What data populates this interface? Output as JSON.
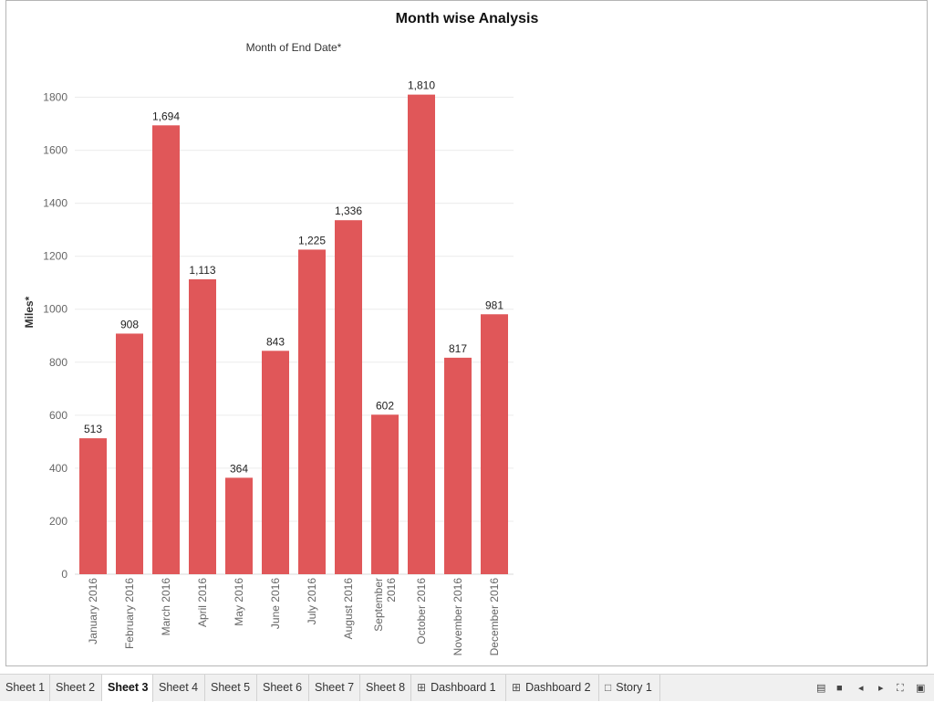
{
  "chart_data": {
    "type": "bar",
    "title": "Month wise Analysis",
    "column_header": "Month of End Date*",
    "ylabel": "Miles*",
    "ylim": [
      0,
      1950
    ],
    "yticks": [
      0,
      200,
      400,
      600,
      800,
      1000,
      1200,
      1400,
      1600,
      1800
    ],
    "grid": true,
    "bar_color": "#e05759",
    "categories": [
      "January 2016",
      "February 2016",
      "March 2016",
      "April 2016",
      "May 2016",
      "June 2016",
      "July 2016",
      "August 2016",
      "September 2016",
      "October 2016",
      "November 2016",
      "December 2016"
    ],
    "category_lines": [
      [
        "January 2016"
      ],
      [
        "February 2016"
      ],
      [
        "March 2016"
      ],
      [
        "April 2016"
      ],
      [
        "May 2016"
      ],
      [
        "June 2016"
      ],
      [
        "July 2016"
      ],
      [
        "August 2016"
      ],
      [
        "September",
        "2016"
      ],
      [
        "October 2016"
      ],
      [
        "November 2016"
      ],
      [
        "December 2016"
      ]
    ],
    "values": [
      513,
      908,
      1694,
      1113,
      364,
      843,
      1225,
      1336,
      602,
      1810,
      817,
      981
    ],
    "value_labels": [
      "513",
      "908",
      "1,694",
      "1,113",
      "364",
      "843",
      "1,225",
      "1,336",
      "602",
      "1,810",
      "817",
      "981"
    ]
  },
  "tabs": [
    {
      "label": "Sheet 1",
      "icon": ""
    },
    {
      "label": "Sheet 2",
      "icon": ""
    },
    {
      "label": "Sheet 3",
      "icon": "",
      "active": true
    },
    {
      "label": "Sheet 4",
      "icon": ""
    },
    {
      "label": "Sheet 5",
      "icon": ""
    },
    {
      "label": "Sheet 6",
      "icon": ""
    },
    {
      "label": "Sheet 7",
      "icon": ""
    },
    {
      "label": "Sheet 8",
      "icon": ""
    },
    {
      "label": "Dashboard 1",
      "icon": "dashboard-icon"
    },
    {
      "label": "Dashboard 2",
      "icon": "dashboard-icon"
    },
    {
      "label": "Story 1",
      "icon": "story-icon"
    }
  ],
  "controls": [
    "filmstrip-icon",
    "tabs-view-icon",
    "prev-sheet-icon",
    "next-sheet-icon",
    "fullscreen-icon",
    "presentation-icon"
  ]
}
